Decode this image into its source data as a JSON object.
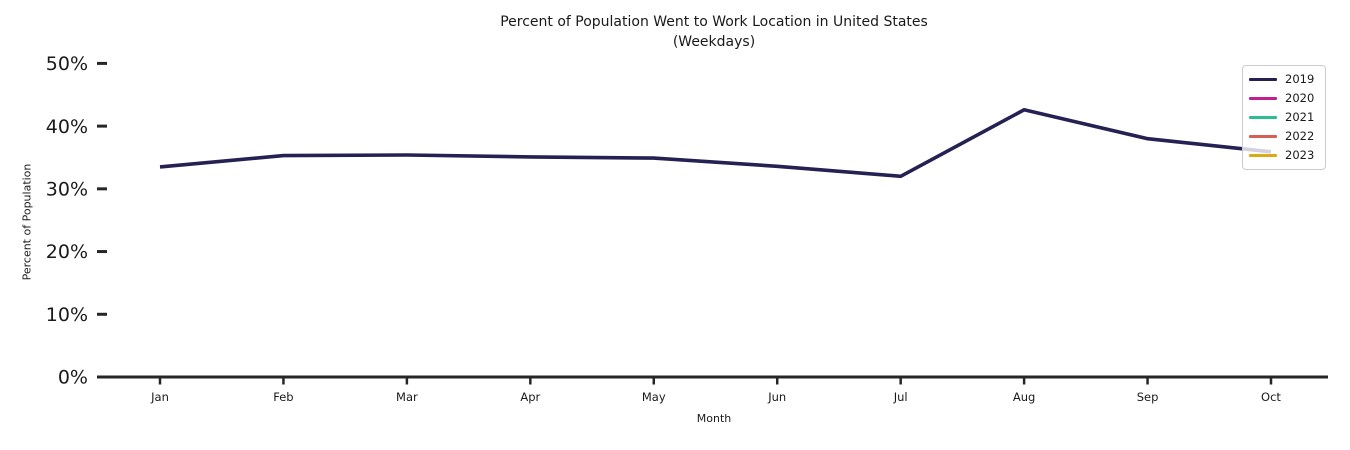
{
  "title": {
    "line1": "Percent of Population Went to Work Location in United States",
    "line2": "(Weekdays)"
  },
  "chart_data": {
    "type": "line",
    "title": "Percent of Population Went to Work Location in United States (Weekdays)",
    "xlabel": "Month",
    "ylabel": "Percent of Population",
    "categories": [
      "Jan",
      "Feb",
      "Mar",
      "Apr",
      "May",
      "Jun",
      "Jul",
      "Aug",
      "Sep",
      "Oct"
    ],
    "ylim": [
      0,
      50
    ],
    "yticks": [
      0,
      10,
      20,
      30,
      40,
      50
    ],
    "ytick_labels": [
      "0%",
      "10%",
      "20%",
      "30%",
      "40%",
      "50%"
    ],
    "grid": false,
    "legend_position": "upper right",
    "series": [
      {
        "name": "2019",
        "color": "#252253",
        "values": [
          33.5,
          35.3,
          35.4,
          35.1,
          34.9,
          33.6,
          32.0,
          42.6,
          38.0,
          35.9
        ]
      },
      {
        "name": "2020",
        "color": "#c2208d",
        "values": null
      },
      {
        "name": "2021",
        "color": "#2bbf8e",
        "values": null
      },
      {
        "name": "2022",
        "color": "#d45f52",
        "values": null
      },
      {
        "name": "2023",
        "color": "#ddaa13",
        "values": null
      }
    ]
  },
  "colors": {
    "axis": "#262626",
    "text": "#1a1a1a",
    "legend_border": "#cccccc"
  }
}
